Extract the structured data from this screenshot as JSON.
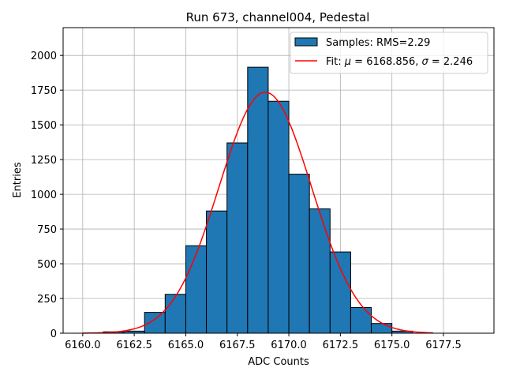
{
  "chart_data": {
    "type": "bar",
    "title": "Run 673, channel004, Pedestal",
    "xlabel": "ADC Counts",
    "ylabel": "Entries",
    "xlim": [
      6159.05,
      6179.95
    ],
    "ylim": [
      0,
      2200
    ],
    "xticks": [
      6160.0,
      6162.5,
      6165.0,
      6167.5,
      6170.0,
      6172.5,
      6175.0,
      6177.5
    ],
    "xtick_labels": [
      "6160.0",
      "6162.5",
      "6165.0",
      "6167.5",
      "6170.0",
      "6172.5",
      "6175.0",
      "6177.5"
    ],
    "yticks": [
      0,
      250,
      500,
      750,
      1000,
      1250,
      1500,
      1750,
      2000
    ],
    "ytick_labels": [
      "0",
      "250",
      "500",
      "750",
      "1000",
      "1250",
      "1500",
      "1750",
      "2000"
    ],
    "grid": true,
    "legend_position": "top-right",
    "histogram": {
      "name": "Samples: RMS=2.29",
      "bin_edges": [
        6160,
        6161,
        6162,
        6163,
        6164,
        6165,
        6166,
        6167,
        6168,
        6169,
        6170,
        6171,
        6172,
        6173,
        6174,
        6175,
        6176,
        6177,
        6178,
        6179
      ],
      "counts": [
        0,
        10,
        15,
        150,
        280,
        630,
        880,
        1370,
        1915,
        1670,
        1145,
        895,
        585,
        185,
        70,
        15,
        0,
        0,
        0
      ],
      "color": "#1f77b4",
      "edge_color": "#000000"
    },
    "fit": {
      "name": "Fit: μ = 6168.856, σ = 2.246",
      "name_prefix": "Fit: ",
      "name_mu": "μ",
      "name_mid": " = 6168.856, ",
      "name_sigma": "σ",
      "name_suffix": " = 2.246",
      "mu": 6168.856,
      "sigma": 2.246,
      "amplitude": 1735,
      "x_range": [
        6160,
        6177
      ],
      "color": "#ff0000"
    }
  }
}
